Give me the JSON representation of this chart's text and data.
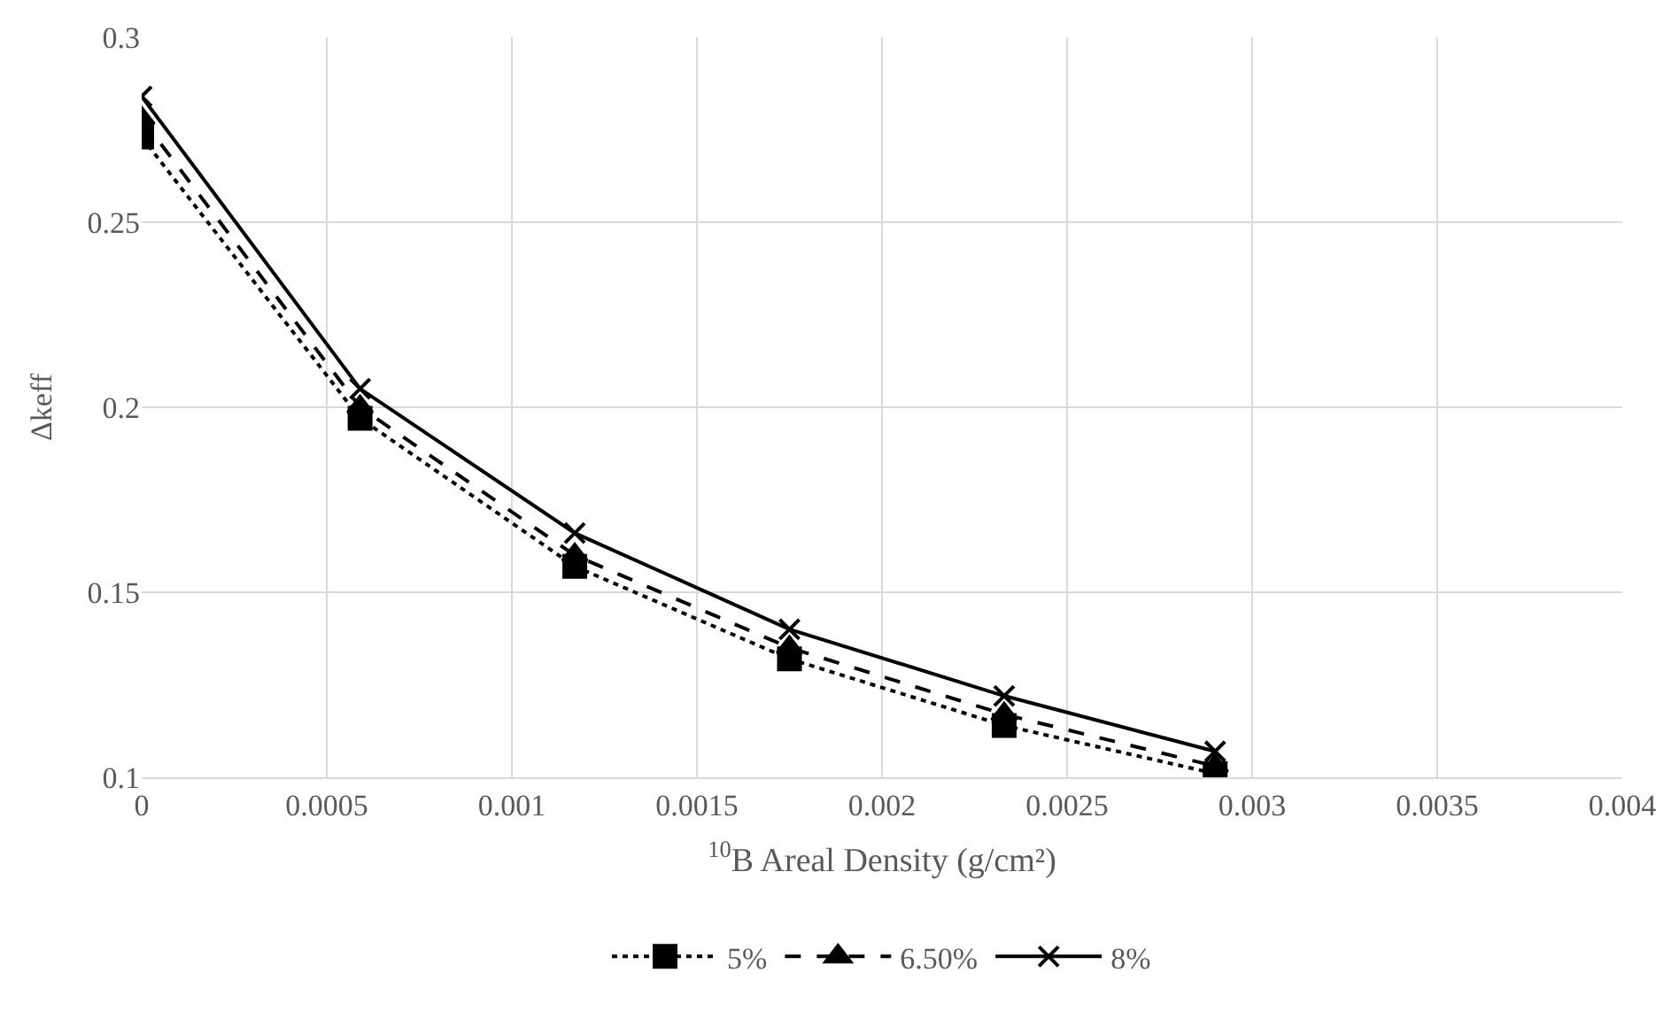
{
  "chart_data": {
    "type": "line",
    "xlabel": "$^{10}$B Areal Density (g/cm²)",
    "ylabel": "Δkeff",
    "x": [
      0,
      0.00059,
      0.00117,
      0.00175,
      0.00233,
      0.0029
    ],
    "series": [
      {
        "name": "5%",
        "color": "#000000",
        "values": [
          0.273,
          0.197,
          0.157,
          0.132,
          0.114,
          0.101
        ],
        "marker": "square",
        "line_style": "dotted"
      },
      {
        "name": "6.50%",
        "color": "#000000",
        "values": [
          0.278,
          0.2,
          0.16,
          0.135,
          0.117,
          0.103
        ],
        "marker": "triangle",
        "line_style": "dashed"
      },
      {
        "name": "8%",
        "color": "#000000",
        "values": [
          0.284,
          0.205,
          0.166,
          0.14,
          0.122,
          0.107
        ],
        "marker": "cross",
        "line_style": "solid"
      }
    ],
    "xlim": [
      0,
      0.004
    ],
    "xticks": [
      0,
      0.0005,
      0.001,
      0.0015,
      0.002,
      0.0025,
      0.003,
      0.0035,
      0.004
    ],
    "ylim": [
      0.1,
      0.3
    ],
    "yticks": [
      0.1,
      0.15,
      0.2,
      0.25,
      0.3
    ],
    "grid": true,
    "legend": "bottom"
  }
}
